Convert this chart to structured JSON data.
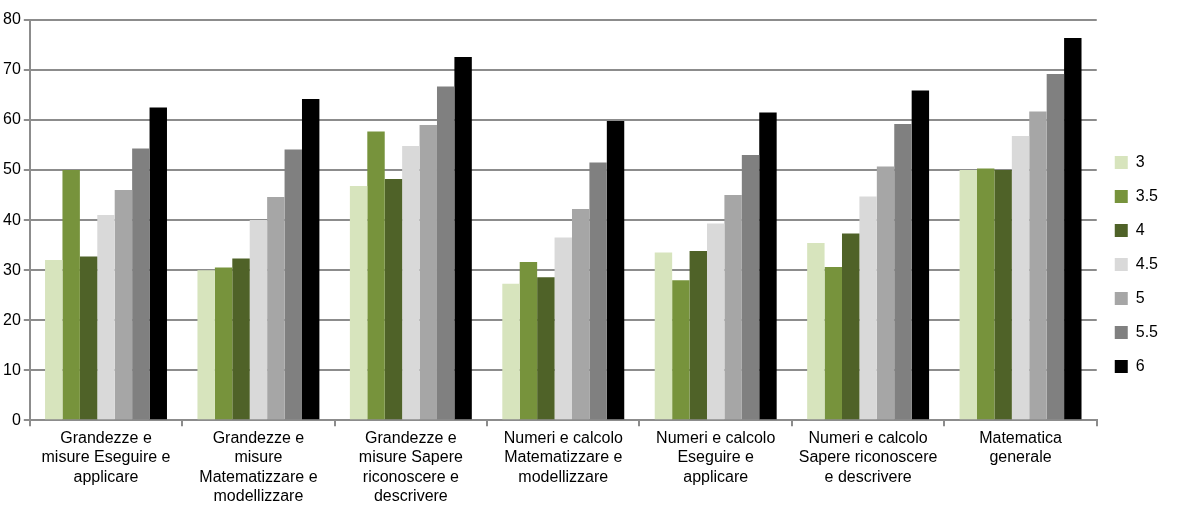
{
  "chart_data": {
    "type": "bar",
    "categories": [
      "Grandezze e misure Eseguire e applicare",
      "Grandezze e misure Matematizzare e modellizzare",
      "Grandezze e misure Sapere riconoscere e descrivere",
      "Numeri e calcolo Matematizzare e modellizzare",
      "Numeri e calcolo Eseguire e applicare",
      "Numeri e calcolo Sapere riconoscere e descrivere",
      "Matematica generale"
    ],
    "series": [
      {
        "name": "3",
        "color": "#d7e4bd",
        "values": [
          32,
          30,
          46.8,
          27.3,
          33.5,
          35.4,
          50
        ]
      },
      {
        "name": "3.5",
        "color": "#77933c",
        "values": [
          50,
          30.5,
          57.7,
          31.6,
          28,
          30.6,
          50.3
        ]
      },
      {
        "name": "4",
        "color": "#4f6228",
        "values": [
          32.7,
          32.3,
          48.2,
          28.6,
          33.8,
          37.3,
          50
        ]
      },
      {
        "name": "4.5",
        "color": "#d9d9d9",
        "values": [
          41,
          40,
          54.8,
          36.5,
          39.3,
          44.7,
          56.8
        ]
      },
      {
        "name": "5",
        "color": "#a6a6a6",
        "values": [
          46,
          44.6,
          59,
          42.2,
          45,
          50.7,
          61.7
        ]
      },
      {
        "name": "5.5",
        "color": "#808080",
        "values": [
          54.3,
          54.1,
          66.7,
          51.5,
          53,
          59.2,
          69.2
        ]
      },
      {
        "name": "6",
        "color": "#000000",
        "values": [
          62.5,
          64.2,
          72.6,
          59.8,
          61.5,
          65.9,
          76.4
        ]
      }
    ],
    "ylim": [
      0,
      80
    ],
    "yticks": [
      0,
      10,
      20,
      30,
      40,
      50,
      60,
      70,
      80
    ],
    "grid": "y",
    "legend": "right"
  }
}
